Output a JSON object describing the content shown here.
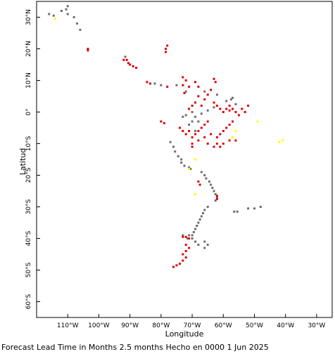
{
  "map": {
    "xlabel": "Longitude",
    "ylabel": "Latitud",
    "caption": "Forecast Lead Time in Months 2.5 months Hecho en 0000 1 Jun 2025",
    "lon_range": [
      -120,
      -25
    ],
    "lat_range": [
      -65,
      35
    ],
    "lon_ticks": [
      {
        "value": -110,
        "label": "110°W"
      },
      {
        "value": -100,
        "label": "100°W"
      },
      {
        "value": -90,
        "label": "90°W"
      },
      {
        "value": -80,
        "label": "80°W"
      },
      {
        "value": -70,
        "label": "70°W"
      },
      {
        "value": -60,
        "label": "60°W"
      },
      {
        "value": -50,
        "label": "50°W"
      },
      {
        "value": -40,
        "label": "40°W"
      },
      {
        "value": -30,
        "label": "30°W"
      }
    ],
    "lat_ticks": [
      {
        "value": 30,
        "label": "30°N"
      },
      {
        "value": 20,
        "label": "20°N"
      },
      {
        "value": 10,
        "label": "10°N"
      },
      {
        "value": 0,
        "label": "0°"
      },
      {
        "value": -10,
        "label": "10°S"
      },
      {
        "value": -20,
        "label": "20°S"
      },
      {
        "value": -30,
        "label": "30°S"
      },
      {
        "value": -40,
        "label": "40°S"
      },
      {
        "value": -50,
        "label": "50°S"
      },
      {
        "value": -60,
        "label": "60°S"
      }
    ],
    "colors": {
      "gray": "#6e6e6e",
      "red": "#e00000",
      "yellow": "#ffff00"
    },
    "station_groups": [
      {
        "color": "gray",
        "points": [
          [
            -116,
            31
          ],
          [
            -114.5,
            30.5
          ],
          [
            -112,
            32
          ],
          [
            -110,
            33.5
          ],
          [
            -110.5,
            32.5
          ],
          [
            -110,
            31
          ],
          [
            -108,
            30
          ],
          [
            -107,
            28
          ],
          [
            -106,
            26
          ],
          [
            -91.5,
            17.5
          ],
          [
            -82,
            9
          ],
          [
            -80,
            8.5
          ],
          [
            -75,
            8.5
          ],
          [
            -72,
            6.5
          ],
          [
            -66,
            6.5
          ],
          [
            -62,
            5.5
          ],
          [
            -59,
            3.5
          ],
          [
            -57,
            4.5
          ],
          [
            -57.5,
            4
          ],
          [
            -56,
            2.5
          ],
          [
            -63,
            1.5
          ],
          [
            -65,
            0.5
          ],
          [
            -67,
            -0.5
          ],
          [
            -69,
            -1.5
          ],
          [
            -70,
            0
          ],
          [
            -70,
            -3
          ],
          [
            -72,
            -1
          ],
          [
            -73,
            -1.5
          ],
          [
            -71,
            -4
          ],
          [
            -69,
            -6
          ],
          [
            -68,
            -3
          ],
          [
            -77,
            -9.5
          ],
          [
            -76,
            -11
          ],
          [
            -75.5,
            -12.5
          ],
          [
            -74.5,
            -14
          ],
          [
            -73.5,
            -15
          ],
          [
            -73.5,
            -16
          ],
          [
            -72.5,
            -17
          ],
          [
            -71,
            -17.5
          ],
          [
            -70.5,
            -18
          ],
          [
            -67,
            -19
          ],
          [
            -66,
            -20
          ],
          [
            -65.5,
            -21
          ],
          [
            -64.5,
            -22
          ],
          [
            -64,
            -23
          ],
          [
            -63.5,
            -24
          ],
          [
            -63,
            -25
          ],
          [
            -62.5,
            -26
          ],
          [
            -62,
            -27
          ],
          [
            -62.5,
            -28
          ],
          [
            -65,
            -30
          ],
          [
            -66,
            -31
          ],
          [
            -66.5,
            -32
          ],
          [
            -67,
            -33
          ],
          [
            -67.5,
            -34
          ],
          [
            -68,
            -35
          ],
          [
            -68.5,
            -36
          ],
          [
            -69,
            -37
          ],
          [
            -69.5,
            -38
          ],
          [
            -70,
            -39
          ],
          [
            -71,
            -39
          ],
          [
            -73,
            -39
          ],
          [
            -71.5,
            -40
          ],
          [
            -70,
            -40
          ],
          [
            -69,
            -41
          ],
          [
            -68,
            -42
          ],
          [
            -66,
            -43
          ],
          [
            -65,
            -42
          ],
          [
            -66,
            -41
          ],
          [
            -56.5,
            -31.5
          ],
          [
            -55.5,
            -31.5
          ],
          [
            -52,
            -30.5
          ],
          [
            -50,
            -30.5
          ],
          [
            -48,
            -30
          ]
        ]
      },
      {
        "color": "red",
        "points": [
          [
            -103.5,
            20
          ],
          [
            -103.5,
            19.5
          ],
          [
            -78,
            21
          ],
          [
            -78.5,
            20
          ],
          [
            -78.5,
            19
          ],
          [
            -92,
            16.5
          ],
          [
            -91,
            16.5
          ],
          [
            -90.5,
            15.5
          ],
          [
            -90,
            15
          ],
          [
            -89,
            14.5
          ],
          [
            -88,
            14
          ],
          [
            -84.5,
            9.5
          ],
          [
            -83.5,
            9
          ],
          [
            -78,
            8
          ],
          [
            -73,
            11
          ],
          [
            -72,
            10
          ],
          [
            -71,
            8
          ],
          [
            -73,
            8.5
          ],
          [
            -72.5,
            6
          ],
          [
            -69,
            9.5
          ],
          [
            -68,
            8
          ],
          [
            -63,
            10.5
          ],
          [
            -62.5,
            9.5
          ],
          [
            -64,
            7
          ],
          [
            -65,
            5.5
          ],
          [
            -66,
            4
          ],
          [
            -67,
            2
          ],
          [
            -68,
            5
          ],
          [
            -69,
            3
          ],
          [
            -70,
            2
          ],
          [
            -71,
            1
          ],
          [
            -63,
            3
          ],
          [
            -62,
            2
          ],
          [
            -61,
            1
          ],
          [
            -60,
            0
          ],
          [
            -59,
            1
          ],
          [
            -58,
            0.5
          ],
          [
            -58,
            2
          ],
          [
            -57,
            1
          ],
          [
            -56,
            0
          ],
          [
            -55,
            -1
          ],
          [
            -54,
            1
          ],
          [
            -53,
            0
          ],
          [
            -52,
            2
          ],
          [
            -57,
            -3
          ],
          [
            -58,
            -4
          ],
          [
            -59,
            -5
          ],
          [
            -60,
            -6
          ],
          [
            -61,
            -7
          ],
          [
            -62,
            -8
          ],
          [
            -62,
            -10
          ],
          [
            -61,
            -11
          ],
          [
            -60,
            -10
          ],
          [
            -58,
            -9
          ],
          [
            -57,
            -8
          ],
          [
            -56,
            -9
          ],
          [
            -65,
            -3
          ],
          [
            -66,
            -4
          ],
          [
            -67,
            -5
          ],
          [
            -68,
            -6
          ],
          [
            -69,
            -7
          ],
          [
            -70,
            -8
          ],
          [
            -68,
            -9
          ],
          [
            -66,
            -8
          ],
          [
            -64,
            -7
          ],
          [
            -65,
            -10
          ],
          [
            -63,
            -11
          ],
          [
            -80,
            -3
          ],
          [
            -79,
            -3.5
          ],
          [
            -74,
            -5
          ],
          [
            -73,
            -6
          ],
          [
            -72,
            -7
          ],
          [
            -71,
            -6
          ],
          [
            -70,
            -10
          ],
          [
            -70,
            -11
          ],
          [
            -68,
            -22
          ],
          [
            -67.5,
            -23
          ],
          [
            -62,
            -26.5
          ],
          [
            -62,
            -27.5
          ],
          [
            -73,
            -39.5
          ],
          [
            -72,
            -39.5
          ],
          [
            -71,
            -40
          ],
          [
            -72,
            -42
          ],
          [
            -71,
            -43
          ],
          [
            -72,
            -44
          ],
          [
            -73,
            -45
          ],
          [
            -72,
            -46
          ],
          [
            -73,
            -47
          ],
          [
            -74,
            -48
          ],
          [
            -75,
            -48.5
          ],
          [
            -76,
            -49
          ]
        ]
      },
      {
        "color": "yellow",
        "points": [
          [
            -114,
            29.5
          ],
          [
            -49,
            -3
          ],
          [
            -56,
            -6
          ],
          [
            -57,
            -8
          ],
          [
            -41,
            -9
          ],
          [
            -42,
            -9.5
          ],
          [
            -69,
            -15
          ],
          [
            -71,
            -18
          ],
          [
            -69,
            -26
          ]
        ]
      }
    ]
  }
}
